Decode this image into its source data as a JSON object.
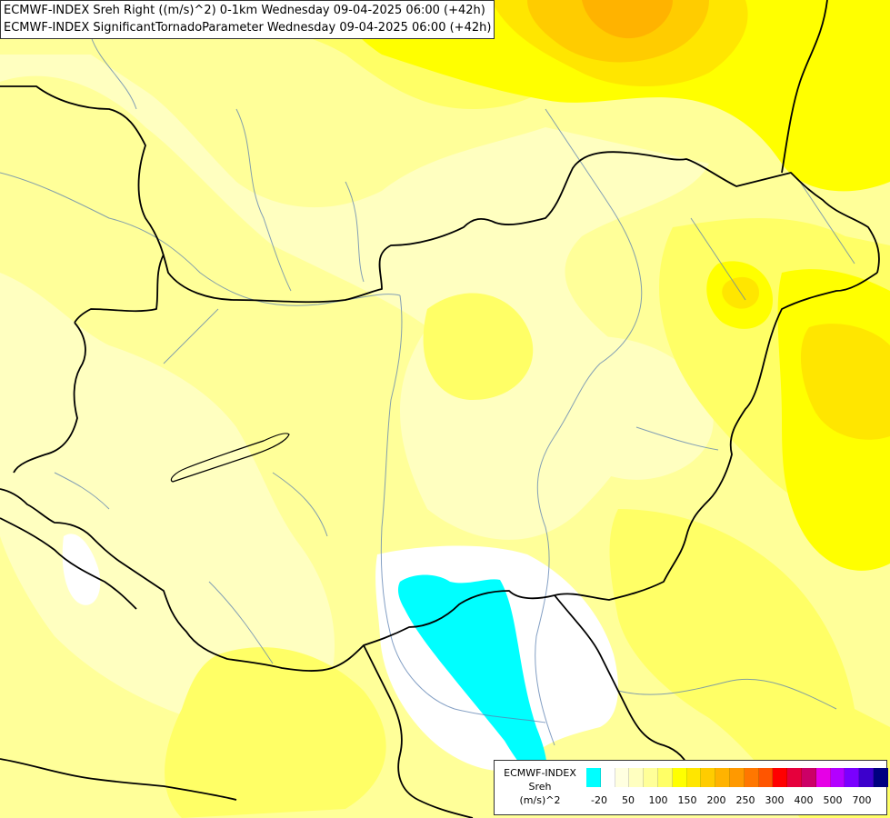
{
  "titles": {
    "line1": "ECMWF-INDEX Sreh Right ((m/s)^2) 0-1km Wednesday 09-04-2025 06:00 (+42h)",
    "line2": "ECMWF-INDEX SignificantTornadoParameter Wednesday 09-04-2025 06:00 (+42h)"
  },
  "legend": {
    "line1": "ECMWF-INDEX",
    "line2": "Sreh",
    "line3": "(m/s)^2",
    "colors": [
      "#00ffff",
      "#ffffff",
      "#ffffe0",
      "#ffffc0",
      "#ffff99",
      "#ffff66",
      "#ffff00",
      "#ffe600",
      "#ffcc00",
      "#ffb300",
      "#ff9900",
      "#ff7700",
      "#ff5500",
      "#ff0000",
      "#e6003c",
      "#cc0066",
      "#e600e6",
      "#b300ff",
      "#7a00ff",
      "#3c00cc",
      "#000080"
    ],
    "ticks": [
      "-20",
      "50",
      "100",
      "150",
      "200",
      "250",
      "300",
      "400",
      "500",
      "700"
    ]
  },
  "palette": {
    "cyan": "#00ffff",
    "white": "#ffffff",
    "pale_yellow": "#ffffc0",
    "light_yellow": "#ffff99",
    "yellow": "#ffff66",
    "bright_yellow": "#ffff00",
    "gold": "#ffe600",
    "orange": "#ffcc00",
    "dark_orange": "#ffb300"
  },
  "icons": {
    "borders": "country-border-lines",
    "rivers": "river-lines"
  }
}
